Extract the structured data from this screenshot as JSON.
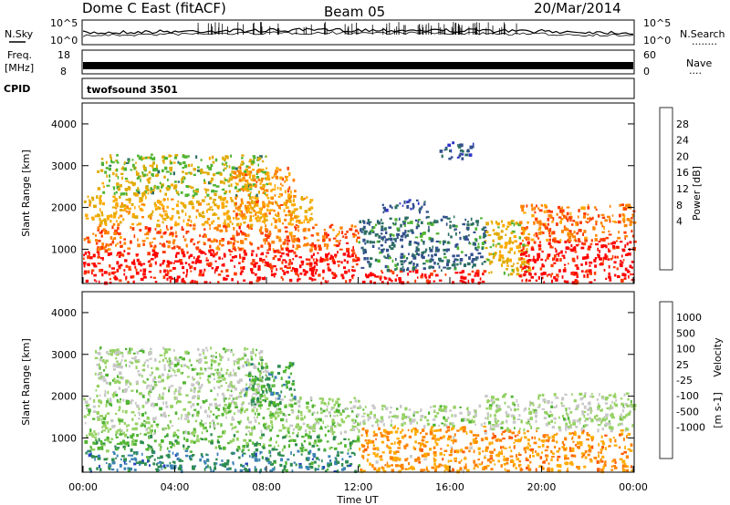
{
  "header": {
    "station": "Dome C East (fitACF)",
    "beam": "Beam 05",
    "date": "20/Mar/2014"
  },
  "strips": {
    "nsky_label": "N.Sky",
    "nsearch_label": "N.Search",
    "nsearch_dots": "........",
    "noise_ticks": [
      "10^5",
      "10^0"
    ],
    "freq_label": "Freq.",
    "freq_unit": "[MHz]",
    "freq_ticks": [
      "18",
      "8"
    ],
    "nave_label": "Nave",
    "nave_dots": "....",
    "nave_ticks": [
      "60",
      "0"
    ],
    "cpid_label": "CPID",
    "cpid_value": "twofsound 3501"
  },
  "chart_data": [
    {
      "type": "heatmap",
      "name": "Power",
      "ylabel": "Slant Range [km]",
      "xlabel": "",
      "x_range": [
        "00:00",
        "24:00"
      ],
      "ylim": [
        180,
        4500
      ],
      "y_ticks": [
        1000,
        2000,
        3000,
        4000
      ],
      "colorbar_label": "Power [dB]",
      "colorbar_ticks": [
        28,
        24,
        20,
        16,
        12,
        8,
        4
      ],
      "colorbar_colors": [
        "#ff0000",
        "#ff3c00",
        "#ff8200",
        "#ffaa00",
        "#e1aa00",
        "#50b432",
        "#2d6e64",
        "#32508c",
        "#2d32c8",
        "#0000ff"
      ],
      "regions": [
        {
          "t0": 0.0,
          "t1": 12.0,
          "r0": 200,
          "r1": 1000,
          "level": 0.95
        },
        {
          "t0": 0.0,
          "t1": 12.0,
          "r0": 1000,
          "r1": 1600,
          "level": 0.8
        },
        {
          "t0": 0.0,
          "t1": 10.0,
          "r0": 1600,
          "r1": 2300,
          "level": 0.62
        },
        {
          "t0": 0.5,
          "t1": 8.0,
          "r0": 2300,
          "r1": 3300,
          "level": 0.5
        },
        {
          "t0": 6.5,
          "t1": 9.2,
          "r0": 1700,
          "r1": 3000,
          "level": 0.72
        },
        {
          "t0": 12.0,
          "t1": 17.5,
          "r0": 200,
          "r1": 500,
          "level": 0.95
        },
        {
          "t0": 12.0,
          "t1": 17.5,
          "r0": 500,
          "r1": 1800,
          "level": 0.32
        },
        {
          "t0": 13.0,
          "t1": 15.0,
          "r0": 1900,
          "r1": 2200,
          "level": 0.22
        },
        {
          "t0": 15.5,
          "t1": 17.0,
          "r0": 3200,
          "r1": 3600,
          "level": 0.25
        },
        {
          "t0": 17.5,
          "t1": 19.5,
          "r0": 400,
          "r1": 1700,
          "level": 0.55
        },
        {
          "t0": 19.0,
          "t1": 24.0,
          "r0": 200,
          "r1": 1200,
          "level": 0.95
        },
        {
          "t0": 19.0,
          "t1": 24.0,
          "r0": 1200,
          "r1": 2100,
          "level": 0.78
        }
      ]
    },
    {
      "type": "heatmap",
      "name": "Velocity",
      "ylabel": "Slant Range [km]",
      "xlabel": "Time UT",
      "x_range": [
        "00:00",
        "24:00"
      ],
      "ylim": [
        180,
        4500
      ],
      "y_ticks": [
        1000,
        2000,
        3000,
        4000
      ],
      "colorbar_label": "Velocity",
      "colorbar_unit": "[m s-1]",
      "colorbar_ticks": [
        1000,
        500,
        100,
        25,
        -25,
        -100,
        -500,
        -1000
      ],
      "colorbar_tick_labels": [
        "1000",
        "500",
        "100",
        "25",
        "-25",
        "-100",
        "-500",
        "-1000"
      ],
      "colorbar_colors": [
        "#2846be",
        "#3c82b4",
        "#2d8c50",
        "#50b432",
        "#96d264",
        "#c8c8c8",
        "#ffaa00",
        "#ff8200",
        "#ff5a00",
        "#ff0000"
      ],
      "regions": [
        {
          "t0": 0.0,
          "t1": 12.0,
          "r0": 200,
          "r1": 700,
          "level": 0.8
        },
        {
          "t0": 0.0,
          "t1": 12.0,
          "r0": 700,
          "r1": 1100,
          "level": 0.65
        },
        {
          "t0": 0.0,
          "t1": 12.0,
          "r0": 1100,
          "r1": 2000,
          "level": 0.55
        },
        {
          "t0": 0.5,
          "t1": 8.0,
          "r0": 2000,
          "r1": 3200,
          "level": 0.52
        },
        {
          "t0": 7.0,
          "t1": 9.2,
          "r0": 1800,
          "r1": 2900,
          "level": 0.72
        },
        {
          "t0": 12.0,
          "t1": 17.5,
          "r0": 200,
          "r1": 1300,
          "level": 0.3
        },
        {
          "t0": 12.0,
          "t1": 17.5,
          "r0": 1300,
          "r1": 1800,
          "level": 0.52
        },
        {
          "t0": 17.5,
          "t1": 24.0,
          "r0": 200,
          "r1": 1200,
          "level": 0.27
        },
        {
          "t0": 17.5,
          "t1": 24.0,
          "r0": 1200,
          "r1": 2100,
          "level": 0.52
        }
      ]
    }
  ],
  "time_axis": {
    "ticks": [
      "00:00",
      "04:00",
      "08:00",
      "12:00",
      "16:00",
      "20:00",
      "00:00"
    ],
    "label": "Time UT"
  }
}
